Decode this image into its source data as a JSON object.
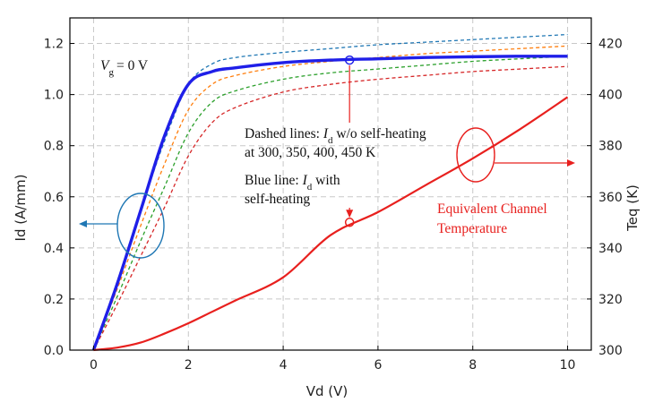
{
  "chart_data": {
    "type": "line",
    "xlabel": "Vd (V)",
    "ylabel_left": "Id (A/mm)",
    "ylabel_right": "Teq (K)",
    "xlim": [
      -0.5,
      10.5
    ],
    "ylim_left": [
      0,
      1.3
    ],
    "ylim_right": [
      300,
      430
    ],
    "x_ticks": [
      "0",
      "2",
      "4",
      "6",
      "8",
      "10"
    ],
    "y_left_ticks": [
      "0.0",
      "0.2",
      "0.4",
      "0.6",
      "0.8",
      "1.0",
      "1.2"
    ],
    "y_right_ticks": [
      "300",
      "320",
      "340",
      "360",
      "380",
      "400",
      "420"
    ],
    "grid": true,
    "series": [
      {
        "axis": "left",
        "style": "dashed",
        "color": "#1f77b4",
        "x": [
          0,
          0.5,
          1,
          1.5,
          2,
          2.5,
          3,
          4,
          5,
          6,
          7,
          8,
          9,
          10
        ],
        "y": [
          0,
          0.27,
          0.55,
          0.82,
          1.04,
          1.12,
          1.145,
          1.165,
          1.18,
          1.195,
          1.205,
          1.215,
          1.225,
          1.235
        ]
      },
      {
        "axis": "left",
        "style": "dashed",
        "color": "#ff7f0e",
        "x": [
          0,
          0.5,
          1,
          1.5,
          2,
          2.5,
          3,
          4,
          5,
          6,
          7,
          8,
          9,
          10
        ],
        "y": [
          0,
          0.24,
          0.49,
          0.73,
          0.94,
          1.04,
          1.075,
          1.11,
          1.13,
          1.145,
          1.16,
          1.17,
          1.18,
          1.19
        ]
      },
      {
        "axis": "left",
        "style": "dashed",
        "color": "#2ca02c",
        "x": [
          0,
          0.5,
          1,
          1.5,
          2,
          2.5,
          3,
          4,
          5,
          6,
          7,
          8,
          9,
          10
        ],
        "y": [
          0,
          0.21,
          0.43,
          0.64,
          0.85,
          0.97,
          1.015,
          1.06,
          1.085,
          1.1,
          1.115,
          1.13,
          1.14,
          1.15
        ]
      },
      {
        "axis": "left",
        "style": "dashed",
        "color": "#d62728",
        "x": [
          0,
          0.5,
          1,
          1.5,
          2,
          2.5,
          3,
          4,
          5,
          6,
          7,
          8,
          9,
          10
        ],
        "y": [
          0,
          0.18,
          0.37,
          0.56,
          0.76,
          0.89,
          0.95,
          1.01,
          1.04,
          1.06,
          1.075,
          1.09,
          1.1,
          1.11
        ]
      },
      {
        "axis": "left",
        "style": "solid",
        "color": "#1f1fe8",
        "x": [
          0,
          0.5,
          1,
          1.5,
          2,
          2.5,
          3,
          4,
          5,
          6,
          7,
          8,
          9,
          10
        ],
        "y": [
          0,
          0.26,
          0.55,
          0.84,
          1.04,
          1.09,
          1.105,
          1.125,
          1.135,
          1.14,
          1.145,
          1.148,
          1.15,
          1.15
        ]
      },
      {
        "axis": "right",
        "style": "solid",
        "color": "#e8201e",
        "x": [
          0,
          0.5,
          1,
          1.5,
          2,
          2.5,
          3,
          4,
          5,
          6,
          7,
          8,
          9,
          10
        ],
        "y": [
          300,
          301,
          303,
          306.5,
          310.5,
          315,
          319.5,
          328.5,
          345,
          354,
          364.5,
          375,
          386.5,
          399
        ]
      }
    ],
    "markers": [
      {
        "axis": "left",
        "x": 5.4,
        "y": 1.135,
        "color": "#1f1fe8"
      },
      {
        "axis": "right",
        "x": 5.4,
        "y": 350,
        "color": "#e8201e"
      }
    ],
    "annotations": {
      "vg": "= 0 V",
      "vg_sym": "V",
      "vg_sub": "g",
      "dashed_prefix": "Dashed lines: ",
      "dashed_sym": "I",
      "dashed_sub": "d",
      "dashed_suffix": " w/o self-heating",
      "dashed_line2": "at 300, 350, 400, 450 K",
      "blue_prefix": "Blue line: ",
      "blue_sym": "I",
      "blue_sub": "d",
      "blue_suffix": " with",
      "blue_line2": "self-heating",
      "red_line1": "Equivalent Channel",
      "red_line2": "Temperature"
    }
  }
}
